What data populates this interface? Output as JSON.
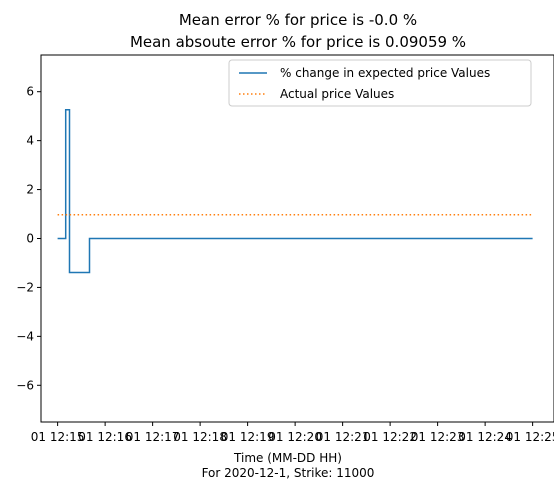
{
  "chart_data": {
    "type": "line",
    "title_lines": [
      "Mean error % for price is -0.0 %",
      "Mean absoute error % for price is 0.09059 %"
    ],
    "xlabel_lines": [
      "Time (MM-DD HH)",
      "For 2020-12-1, Strike: 11000"
    ],
    "ylabel": "",
    "xlim": [
      -0.35,
      10.45
    ],
    "ylim": [
      -7.5,
      7.5
    ],
    "x_ticks": [
      0,
      1,
      2,
      3,
      4,
      5,
      6,
      7,
      8,
      9,
      10
    ],
    "x_tick_labels": [
      "01 12:15",
      "01 12:16",
      "01 12:17",
      "01 12:18",
      "01 12:19",
      "01 12:20",
      "01 12:21",
      "01 12:22",
      "01 12:23",
      "01 12:24",
      "01 12:25"
    ],
    "y_ticks": [
      -6,
      -4,
      -2,
      0,
      2,
      4,
      6
    ],
    "y_tick_labels": [
      "−6",
      "−4",
      "−2",
      "0",
      "2",
      "4",
      "6"
    ],
    "grid": false,
    "legend_position": "top-right",
    "series": [
      {
        "name": "% change in expected price Values",
        "color": "#1f77b4",
        "style": "solid",
        "x": [
          0.0,
          0.17,
          0.17,
          0.25,
          0.25,
          0.67,
          0.67,
          10.0
        ],
        "y": [
          0.0,
          0.0,
          5.26,
          5.26,
          -1.39,
          -1.39,
          0.0,
          0.0
        ]
      },
      {
        "name": "Actual price Values",
        "color": "#ff7f0e",
        "style": "dotted",
        "x": [
          0.0,
          10.0
        ],
        "y": [
          0.97,
          0.97
        ]
      }
    ]
  }
}
